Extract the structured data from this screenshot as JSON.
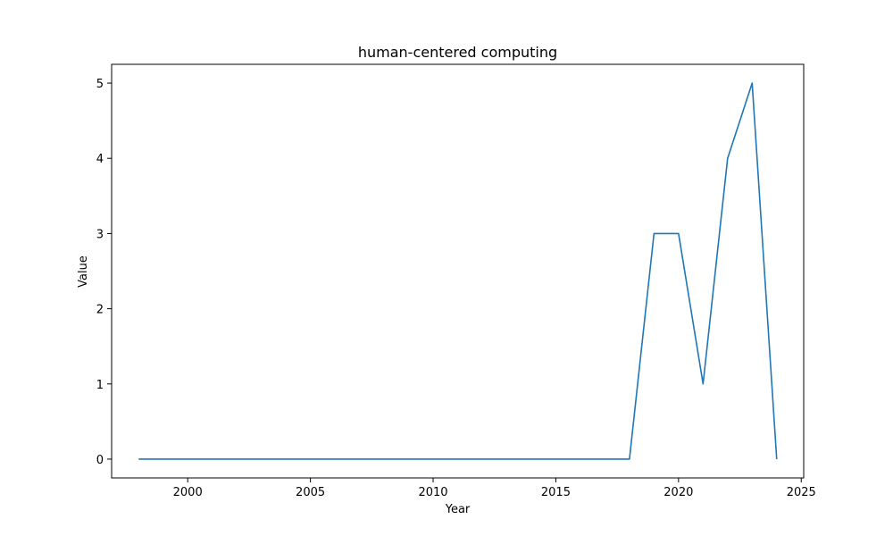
{
  "chart_data": {
    "type": "line",
    "title": "human-centered computing",
    "xlabel": "Year",
    "ylabel": "Value",
    "xlim": [
      1996.9,
      2025.1
    ],
    "ylim": [
      -0.25,
      5.25
    ],
    "xticks": [
      2000,
      2005,
      2010,
      2015,
      2020,
      2025
    ],
    "yticks": [
      0,
      1,
      2,
      3,
      4,
      5
    ],
    "grid": false,
    "series": [
      {
        "color": "#1f77b4",
        "x": [
          1998,
          1999,
          2000,
          2001,
          2002,
          2003,
          2004,
          2005,
          2006,
          2007,
          2008,
          2009,
          2010,
          2011,
          2012,
          2013,
          2014,
          2015,
          2016,
          2017,
          2018,
          2019,
          2020,
          2021,
          2022,
          2023,
          2024
        ],
        "values": [
          0,
          0,
          0,
          0,
          0,
          0,
          0,
          0,
          0,
          0,
          0,
          0,
          0,
          0,
          0,
          0,
          0,
          0,
          0,
          0,
          0,
          3,
          3,
          1,
          4,
          5,
          0
        ]
      }
    ]
  }
}
